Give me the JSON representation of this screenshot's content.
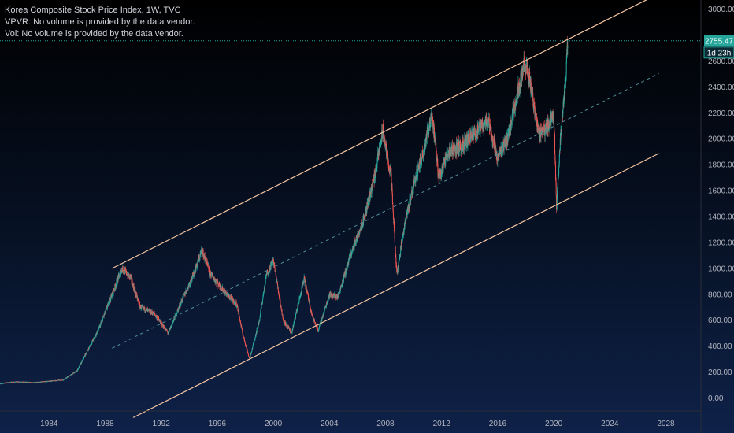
{
  "legend": {
    "title": "Korea Composite Stock Price Index, 1W, TVC",
    "vpvr": "VPVR: No volume is provided by the data vendor.",
    "vol": "Vol: No volume is provided by the data vendor."
  },
  "price_label": {
    "value": "2755.47",
    "countdown": "1d 23h"
  },
  "colors": {
    "up": "#26a69a",
    "down": "#ef5350",
    "channel": "#f7c6a1",
    "midline": "#4f8f9a",
    "price_line": "#26a69a"
  },
  "chart_data": {
    "type": "candlestick",
    "title": "Korea Composite Stock Price Index, 1W, TVC",
    "xlabel": "",
    "ylabel": "",
    "x_ticks": [
      "1984",
      "1988",
      "1992",
      "1996",
      "2000",
      "2004",
      "2008",
      "2012",
      "2016",
      "2020",
      "2024",
      "2028"
    ],
    "y_ticks": [
      "0.00",
      "200.00",
      "400.00",
      "600.00",
      "800.00",
      "1000.00",
      "1200.00",
      "1400.00",
      "1600.00",
      "1800.00",
      "2000.00",
      "2200.00",
      "2400.00",
      "2600.00",
      "2800.00",
      "3000.00"
    ],
    "xlim": [
      1980.5,
      2030.5
    ],
    "ylim": [
      -100,
      3070
    ],
    "last_price": 2755.47,
    "grid": false,
    "series": [
      {
        "values": [
          [
            1980.0,
            105
          ],
          [
            1981.5,
            125
          ],
          [
            1983.0,
            120
          ],
          [
            1985.0,
            140
          ],
          [
            1986.0,
            210
          ],
          [
            1987.0,
            420
          ],
          [
            1987.5,
            520
          ],
          [
            1988.5,
            800
          ],
          [
            1989.2,
            1000
          ],
          [
            1989.8,
            930
          ],
          [
            1990.5,
            700
          ],
          [
            1991.5,
            650
          ],
          [
            1992.5,
            500
          ],
          [
            1993.5,
            760
          ],
          [
            1994.3,
            950
          ],
          [
            1994.9,
            1140
          ],
          [
            1995.5,
            960
          ],
          [
            1996.5,
            820
          ],
          [
            1997.4,
            720
          ],
          [
            1997.8,
            500
          ],
          [
            1998.3,
            300
          ],
          [
            1999.0,
            600
          ],
          [
            1999.5,
            950
          ],
          [
            2000.0,
            1060
          ],
          [
            2000.7,
            600
          ],
          [
            2001.3,
            500
          ],
          [
            2002.2,
            920
          ],
          [
            2002.8,
            620
          ],
          [
            2003.2,
            520
          ],
          [
            2004.0,
            800
          ],
          [
            2004.6,
            780
          ],
          [
            2005.5,
            1100
          ],
          [
            2006.5,
            1400
          ],
          [
            2007.2,
            1700
          ],
          [
            2007.8,
            2060
          ],
          [
            2008.4,
            1700
          ],
          [
            2008.8,
            950
          ],
          [
            2009.3,
            1300
          ],
          [
            2010.0,
            1650
          ],
          [
            2010.7,
            1900
          ],
          [
            2011.3,
            2200
          ],
          [
            2011.8,
            1700
          ],
          [
            2012.5,
            1900
          ],
          [
            2013.5,
            1950
          ],
          [
            2014.5,
            2050
          ],
          [
            2015.3,
            2150
          ],
          [
            2016.0,
            1850
          ],
          [
            2016.7,
            2000
          ],
          [
            2017.3,
            2300
          ],
          [
            2017.9,
            2580
          ],
          [
            2018.3,
            2450
          ],
          [
            2018.9,
            2050
          ],
          [
            2019.5,
            2080
          ],
          [
            2020.0,
            2200
          ],
          [
            2020.2,
            1460
          ],
          [
            2020.5,
            2050
          ],
          [
            2020.8,
            2400
          ],
          [
            2021.0,
            2755
          ]
        ]
      }
    ],
    "channel": {
      "upper": [
        [
          1988.5,
          1000
        ],
        [
          2020.8,
          2755
        ]
      ],
      "lower": [
        [
          1998.3,
          300
        ],
        [
          2020.2,
          1460
        ]
      ]
    }
  }
}
